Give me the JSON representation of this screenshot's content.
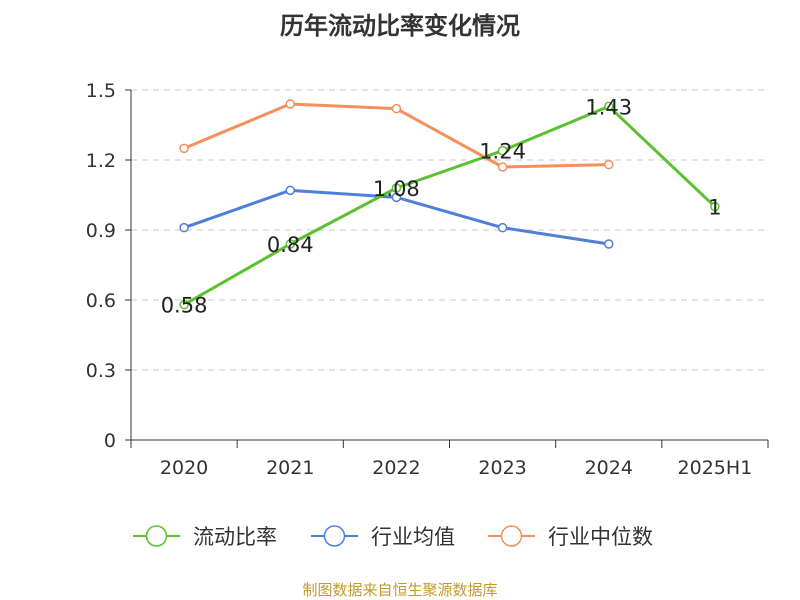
{
  "chart_data": {
    "type": "line",
    "title": "历年流动比率变化情况",
    "categories": [
      "2020",
      "2021",
      "2022",
      "2023",
      "2024",
      "2025H1"
    ],
    "ylim": [
      0,
      1.5
    ],
    "yticks": [
      0,
      0.3,
      0.6,
      0.9,
      1.2,
      1.5
    ],
    "ytick_labels": [
      "0",
      "0.3",
      "0.6",
      "0.9",
      "1.2",
      "1.5"
    ],
    "grid": true,
    "legend_position": "bottom",
    "series": [
      {
        "name": "流动比率",
        "color": "#5cc12f",
        "values": [
          0.58,
          0.84,
          1.08,
          1.24,
          1.43,
          1
        ],
        "labels": [
          "0.58",
          "0.84",
          "1.08",
          "1.24",
          "1.43",
          "1"
        ]
      },
      {
        "name": "行业均值",
        "color": "#4e7fd9",
        "values": [
          0.91,
          1.07,
          1.04,
          0.91,
          0.84,
          null
        ]
      },
      {
        "name": "行业中位数",
        "color": "#f58f5c",
        "values": [
          1.25,
          1.44,
          1.42,
          1.17,
          1.18,
          null
        ]
      }
    ]
  },
  "source": {
    "text": "制图数据来自恒生聚源数据库",
    "color": "#c49a2e"
  }
}
